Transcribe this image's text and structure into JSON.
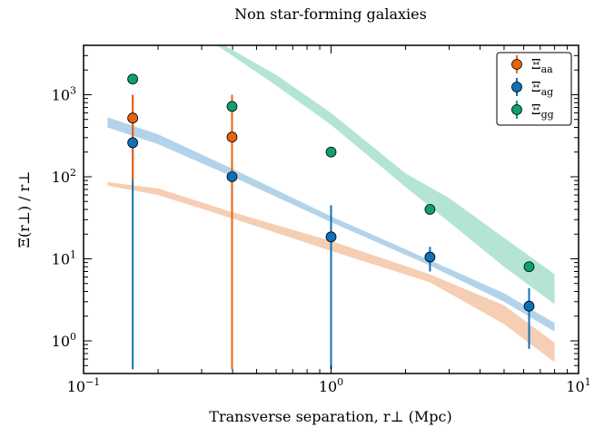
{
  "chart_data": {
    "type": "scatter",
    "title": "Non star-forming galaxies",
    "xlabel": "Transverse separation, r⊥ (Mpc)",
    "ylabel": "Ξ(r⊥) / r⊥",
    "xscale": "log",
    "yscale": "log",
    "xlim": [
      0.1,
      10
    ],
    "ylim": [
      0.4,
      4000
    ],
    "x_ticks": [
      {
        "value": 0.1,
        "base": "10",
        "exp": "−1"
      },
      {
        "value": 1,
        "base": "10",
        "exp": "0"
      },
      {
        "value": 10,
        "base": "10",
        "exp": "1"
      }
    ],
    "y_ticks": [
      {
        "value": 1,
        "base": "10",
        "exp": "0"
      },
      {
        "value": 10,
        "base": "10",
        "exp": "1"
      },
      {
        "value": 100,
        "base": "10",
        "exp": "2"
      },
      {
        "value": 1000,
        "base": "10",
        "exp": "3"
      }
    ],
    "legend_position": "top-right",
    "series": [
      {
        "name": "Ξaa",
        "label_main": "Ξ",
        "label_sub": "aa",
        "color": "#e5650e",
        "band_color": "#f4c5a6",
        "points": [
          {
            "x": 0.158,
            "y": 520,
            "ylow": 90,
            "yhigh": 1000
          },
          {
            "x": 0.398,
            "y": 305,
            "ylow": 0.45,
            "yhigh": 1000
          }
        ],
        "band": [
          {
            "x": 0.125,
            "lo": 78,
            "hi": 86
          },
          {
            "x": 0.2,
            "lo": 60,
            "hi": 72
          },
          {
            "x": 0.4,
            "lo": 31,
            "hi": 37
          },
          {
            "x": 1.0,
            "lo": 12.5,
            "hi": 16.5
          },
          {
            "x": 2.5,
            "lo": 5.2,
            "hi": 6.5
          },
          {
            "x": 5.0,
            "lo": 1.6,
            "hi": 2.7
          },
          {
            "x": 8.0,
            "lo": 0.55,
            "hi": 0.95
          }
        ]
      },
      {
        "name": "Ξag",
        "label_main": "Ξ",
        "label_sub": "ag",
        "color": "#0f70b8",
        "band_color": "#a6cbe6",
        "points": [
          {
            "x": 0.158,
            "y": 260,
            "ylow": 0.45,
            "yhigh": 1000
          },
          {
            "x": 0.398,
            "y": 100,
            "ylow": 50,
            "yhigh": 150
          },
          {
            "x": 1.0,
            "y": 18.5,
            "ylow": 0.45,
            "yhigh": 45
          },
          {
            "x": 2.51,
            "y": 10.5,
            "ylow": 7,
            "yhigh": 14
          },
          {
            "x": 6.31,
            "y": 2.65,
            "ylow": 0.8,
            "yhigh": 4.4
          }
        ],
        "band": [
          {
            "x": 0.125,
            "lo": 400,
            "hi": 530
          },
          {
            "x": 0.2,
            "lo": 250,
            "hi": 330
          },
          {
            "x": 0.4,
            "lo": 100,
            "hi": 125
          },
          {
            "x": 1.0,
            "lo": 28,
            "hi": 33
          },
          {
            "x": 2.5,
            "lo": 8.3,
            "hi": 9.7
          },
          {
            "x": 5.0,
            "lo": 3.0,
            "hi": 3.8
          },
          {
            "x": 8.0,
            "lo": 1.3,
            "hi": 1.65
          }
        ]
      },
      {
        "name": "Ξgg",
        "label_main": "Ξ",
        "label_sub": "gg",
        "color": "#109e73",
        "band_color": "#a7dfcc",
        "points": [
          {
            "x": 0.158,
            "y": 1550
          },
          {
            "x": 0.398,
            "y": 720
          },
          {
            "x": 1.0,
            "y": 200
          },
          {
            "x": 2.51,
            "y": 40
          },
          {
            "x": 6.31,
            "y": 8.0
          }
        ],
        "band": [
          {
            "x": 0.3,
            "lo": 4400,
            "hi": 4400
          },
          {
            "x": 0.35,
            "lo": 3900,
            "hi": 4400
          },
          {
            "x": 0.6,
            "lo": 1300,
            "hi": 1750
          },
          {
            "x": 1.0,
            "lo": 430,
            "hi": 600
          },
          {
            "x": 2.0,
            "lo": 75,
            "hi": 110
          },
          {
            "x": 3.0,
            "lo": 28,
            "hi": 55
          },
          {
            "x": 5.0,
            "lo": 8,
            "hi": 18
          },
          {
            "x": 8.0,
            "lo": 2.8,
            "hi": 6.5
          }
        ]
      }
    ]
  }
}
